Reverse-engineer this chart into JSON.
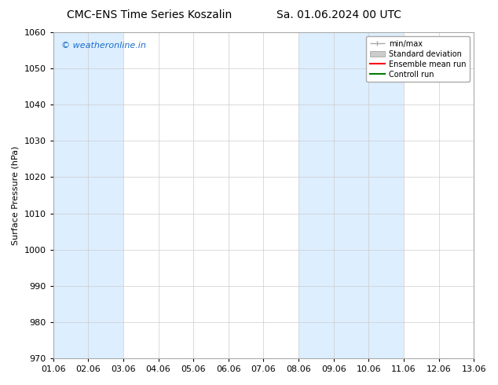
{
  "title_left": "CMC-ENS Time Series Koszalin",
  "title_right": "Sa. 01.06.2024 00 UTC",
  "ylabel": "Surface Pressure (hPa)",
  "ylim": [
    970,
    1060
  ],
  "yticks": [
    970,
    980,
    990,
    1000,
    1010,
    1020,
    1030,
    1040,
    1050,
    1060
  ],
  "xlim_start": 0,
  "xlim_end": 12,
  "xtick_labels": [
    "01.06",
    "02.06",
    "03.06",
    "04.06",
    "05.06",
    "06.06",
    "07.06",
    "08.06",
    "09.06",
    "10.06",
    "11.06",
    "12.06",
    "13.06"
  ],
  "shaded_bands": [
    {
      "x_start": 0,
      "x_end": 1,
      "color": "#ddeeff"
    },
    {
      "x_start": 1,
      "x_end": 2,
      "color": "#ddeeff"
    },
    {
      "x_start": 7,
      "x_end": 8,
      "color": "#ddeeff"
    },
    {
      "x_start": 8,
      "x_end": 9,
      "color": "#ddeeff"
    },
    {
      "x_start": 9,
      "x_end": 10,
      "color": "#ddeeff"
    }
  ],
  "watermark_text": "© weatheronline.in",
  "watermark_color": "#1a6dc9",
  "legend_items": [
    {
      "label": "min/max",
      "color": "#aaaaaa"
    },
    {
      "label": "Standard deviation",
      "color": "#cccccc"
    },
    {
      "label": "Ensemble mean run",
      "color": "#ff0000"
    },
    {
      "label": "Controll run",
      "color": "#008000"
    }
  ],
  "bg_color": "#ffffff",
  "plot_bg_color": "#ffffff",
  "grid_color": "#cccccc",
  "grid_lw": 0.5,
  "title_fontsize": 10,
  "ylabel_fontsize": 8,
  "tick_fontsize": 8,
  "legend_fontsize": 7,
  "watermark_fontsize": 8
}
